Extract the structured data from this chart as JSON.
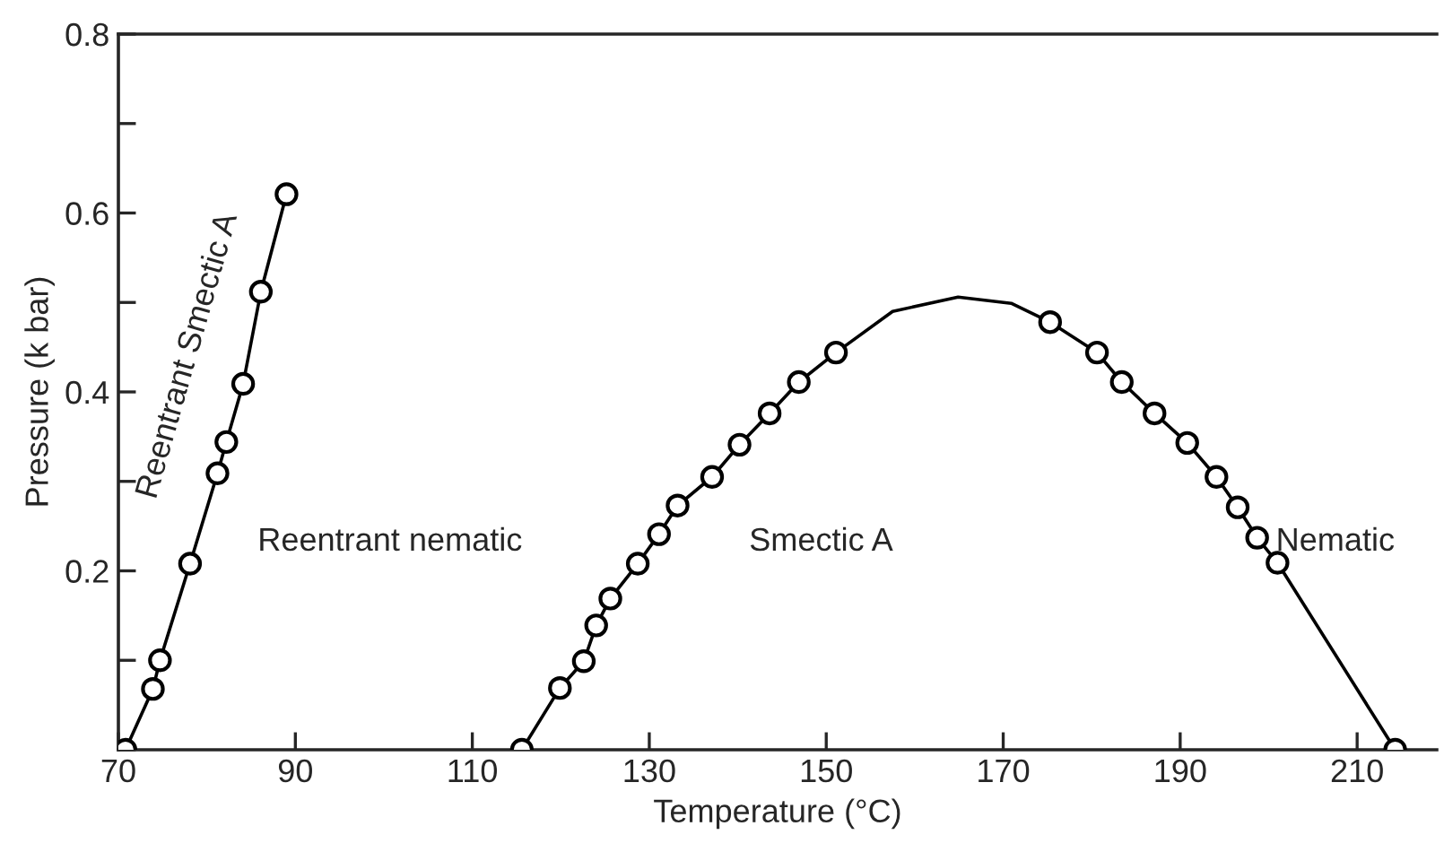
{
  "chart_data": {
    "type": "line",
    "xlabel": "Temperature (°C)",
    "ylabel": "Pressure (k bar)",
    "xlim": [
      70,
      219
    ],
    "xticks": [
      70,
      90,
      110,
      130,
      150,
      170,
      190,
      210
    ],
    "ylim": [
      0,
      0.8
    ],
    "yticks": [
      {
        "value": 0,
        "label": null
      },
      {
        "value": 0.1,
        "label": null
      },
      0.2,
      {
        "value": 0.3,
        "label": null
      },
      0.4,
      {
        "value": 0.5,
        "label": null
      },
      0.6,
      {
        "value": 0.7,
        "label": null
      },
      0.8
    ],
    "grid": false,
    "legend": false,
    "annotations": [
      "Reentrant Smectic A",
      "Reentrant nematic",
      "Smectic A",
      "Nematic"
    ],
    "series": [
      {
        "marker": "circle",
        "color": "#000000",
        "x": [
          70.8,
          73.9,
          74.7,
          78.1,
          81.2,
          82.2,
          84.1,
          86.1,
          89.0
        ],
        "values": [
          0,
          0.068,
          0.1,
          0.208,
          0.309,
          0.344,
          0.409,
          0.512,
          0.621
        ]
      },
      {
        "marker": "none",
        "color": "#000000",
        "x": [
          115.6,
          119.9,
          122.6,
          124.0,
          125.6,
          128.7,
          131.1,
          133.2,
          137.1,
          140.2,
          143.6,
          146.9,
          151.1,
          157.5,
          164.9,
          170.9,
          175.3,
          180.6,
          183.4,
          187.1,
          190.8,
          194.1,
          196.5,
          198.7,
          201.0,
          214.3
        ],
        "values": [
          0,
          0.069,
          0.099,
          0.139,
          0.169,
          0.208,
          0.241,
          0.273,
          0.305,
          0.341,
          0.376,
          0.411,
          0.444,
          0.49,
          0.506,
          0.499,
          0.478,
          0.444,
          0.411,
          0.376,
          0.343,
          0.305,
          0.271,
          0.237,
          0.209,
          0
        ]
      },
      {
        "type": "scatter",
        "marker": "circle",
        "color": "#000000",
        "x": [
          115.6,
          119.9,
          122.6,
          124.0,
          125.6,
          128.7,
          131.1,
          133.2,
          137.1,
          140.2,
          143.6,
          146.9,
          151.1,
          175.3,
          180.6,
          183.4,
          187.1,
          190.8,
          194.1,
          196.5,
          198.7,
          201.0,
          214.3
        ],
        "values": [
          0,
          0.069,
          0.099,
          0.139,
          0.169,
          0.208,
          0.241,
          0.273,
          0.305,
          0.341,
          0.376,
          0.411,
          0.444,
          0.478,
          0.444,
          0.411,
          0.376,
          0.343,
          0.305,
          0.271,
          0.237,
          0.209,
          0
        ]
      }
    ]
  }
}
